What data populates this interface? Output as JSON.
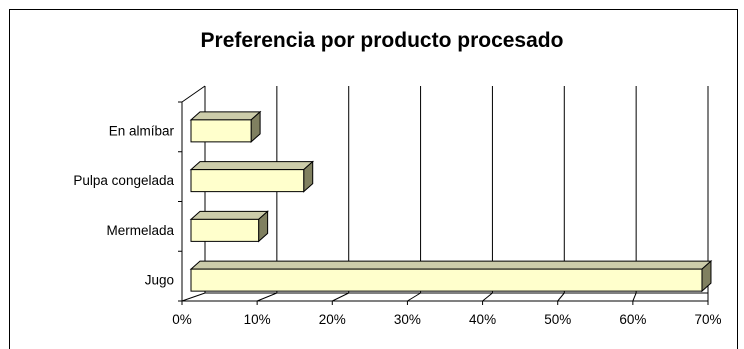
{
  "chart_data": {
    "type": "bar",
    "orientation": "horizontal",
    "style": "3d",
    "title": "Preferencia por producto procesado",
    "categories": [
      "Jugo",
      "Mermelada",
      "Pulpa congelada",
      "En almíbar"
    ],
    "values": [
      68,
      9,
      15,
      8
    ],
    "value_unit": "%",
    "xlabel": "",
    "ylabel": "",
    "xlim": [
      0,
      70
    ],
    "xticks": [
      "0%",
      "10%",
      "20%",
      "30%",
      "40%",
      "50%",
      "60%",
      "70%"
    ],
    "grid": true,
    "legend": "none",
    "bar_color": "#ffffcc",
    "bar_edge_color": "#000000",
    "bar_side_color": "#808060",
    "bar_top_color": "#ccccaa"
  }
}
